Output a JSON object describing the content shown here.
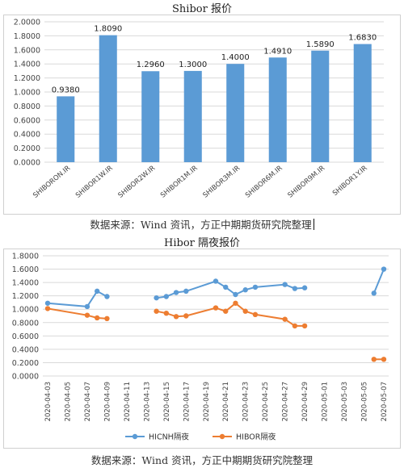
{
  "charts": [
    {
      "title": "Shibor 报价",
      "source": "数据来源：Wind 资讯，方正中期期货研究院整理"
    },
    {
      "title": "Hibor 隔夜报价",
      "source": "数据来源：Wind 资讯，方正中期期货研究院整理"
    }
  ],
  "chart_data": [
    {
      "type": "bar",
      "title": "Shibor 报价",
      "categories": [
        "SHIBORON.IR",
        "SHIBOR1W.IR",
        "SHIBOR2W.IR",
        "SHIBOR1M.IR",
        "SHIBOR3M.IR",
        "SHIBOR6M.IR",
        "SHIBOR9M.IR",
        "SHIBOR1Y.IR"
      ],
      "values": [
        0.938,
        1.809,
        1.296,
        1.3,
        1.4,
        1.491,
        1.589,
        1.683
      ],
      "value_labels": [
        "0.9380",
        "1.8090",
        "1.2960",
        "1.3000",
        "1.4000",
        "1.4910",
        "1.5890",
        "1.6830"
      ],
      "yticks": [
        "0.0000",
        "0.2000",
        "0.4000",
        "0.6000",
        "0.8000",
        "1.0000",
        "1.2000",
        "1.4000",
        "1.6000",
        "1.8000",
        "2.0000"
      ],
      "ylim": [
        0,
        2.0
      ],
      "grid": true,
      "color": "#5b9bd5"
    },
    {
      "type": "line",
      "title": "Hibor 隔夜报价",
      "x_labels": [
        "2020-04-03",
        "2020-04-05",
        "2020-04-07",
        "2020-04-09",
        "2020-04-11",
        "2020-04-13",
        "2020-04-15",
        "2020-04-17",
        "2020-04-19",
        "2020-04-21",
        "2020-04-23",
        "2020-04-25",
        "2020-04-27",
        "2020-04-29",
        "2020-05-01",
        "2020-05-03",
        "2020-05-05",
        "2020-05-07"
      ],
      "yticks": [
        "0.0000",
        "0.2000",
        "0.4000",
        "0.6000",
        "0.8000",
        "1.0000",
        "1.2000",
        "1.4000",
        "1.6000",
        "1.8000"
      ],
      "ylim": [
        0,
        1.8
      ],
      "grid": true,
      "legend": "bottom",
      "series": [
        {
          "name": "HICNH隔夜",
          "color": "#5b9bd5",
          "points": [
            [
              "2020-04-03",
              1.09
            ],
            [
              "2020-04-07",
              1.04
            ],
            [
              "2020-04-08",
              1.27
            ],
            [
              "2020-04-09",
              1.19
            ],
            [
              "2020-04-14",
              1.17
            ],
            [
              "2020-04-15",
              1.19
            ],
            [
              "2020-04-16",
              1.25
            ],
            [
              "2020-04-17",
              1.27
            ],
            [
              "2020-04-20",
              1.42
            ],
            [
              "2020-04-21",
              1.33
            ],
            [
              "2020-04-22",
              1.22
            ],
            [
              "2020-04-23",
              1.29
            ],
            [
              "2020-04-24",
              1.33
            ],
            [
              "2020-04-27",
              1.37
            ],
            [
              "2020-04-28",
              1.31
            ],
            [
              "2020-04-29",
              1.32
            ],
            [
              "2020-05-06",
              1.24
            ],
            [
              "2020-05-07",
              1.6
            ]
          ]
        },
        {
          "name": "HIBOR隔夜",
          "color": "#ed7d31",
          "points": [
            [
              "2020-04-03",
              1.01
            ],
            [
              "2020-04-07",
              0.91
            ],
            [
              "2020-04-08",
              0.87
            ],
            [
              "2020-04-09",
              0.86
            ],
            [
              "2020-04-14",
              0.97
            ],
            [
              "2020-04-15",
              0.94
            ],
            [
              "2020-04-16",
              0.89
            ],
            [
              "2020-04-17",
              0.9
            ],
            [
              "2020-04-20",
              1.02
            ],
            [
              "2020-04-21",
              0.97
            ],
            [
              "2020-04-22",
              1.09
            ],
            [
              "2020-04-23",
              0.97
            ],
            [
              "2020-04-24",
              0.92
            ],
            [
              "2020-04-27",
              0.85
            ],
            [
              "2020-04-28",
              0.75
            ],
            [
              "2020-04-29",
              0.75
            ],
            [
              "2020-05-06",
              0.25
            ],
            [
              "2020-05-07",
              0.25
            ]
          ]
        }
      ]
    }
  ]
}
